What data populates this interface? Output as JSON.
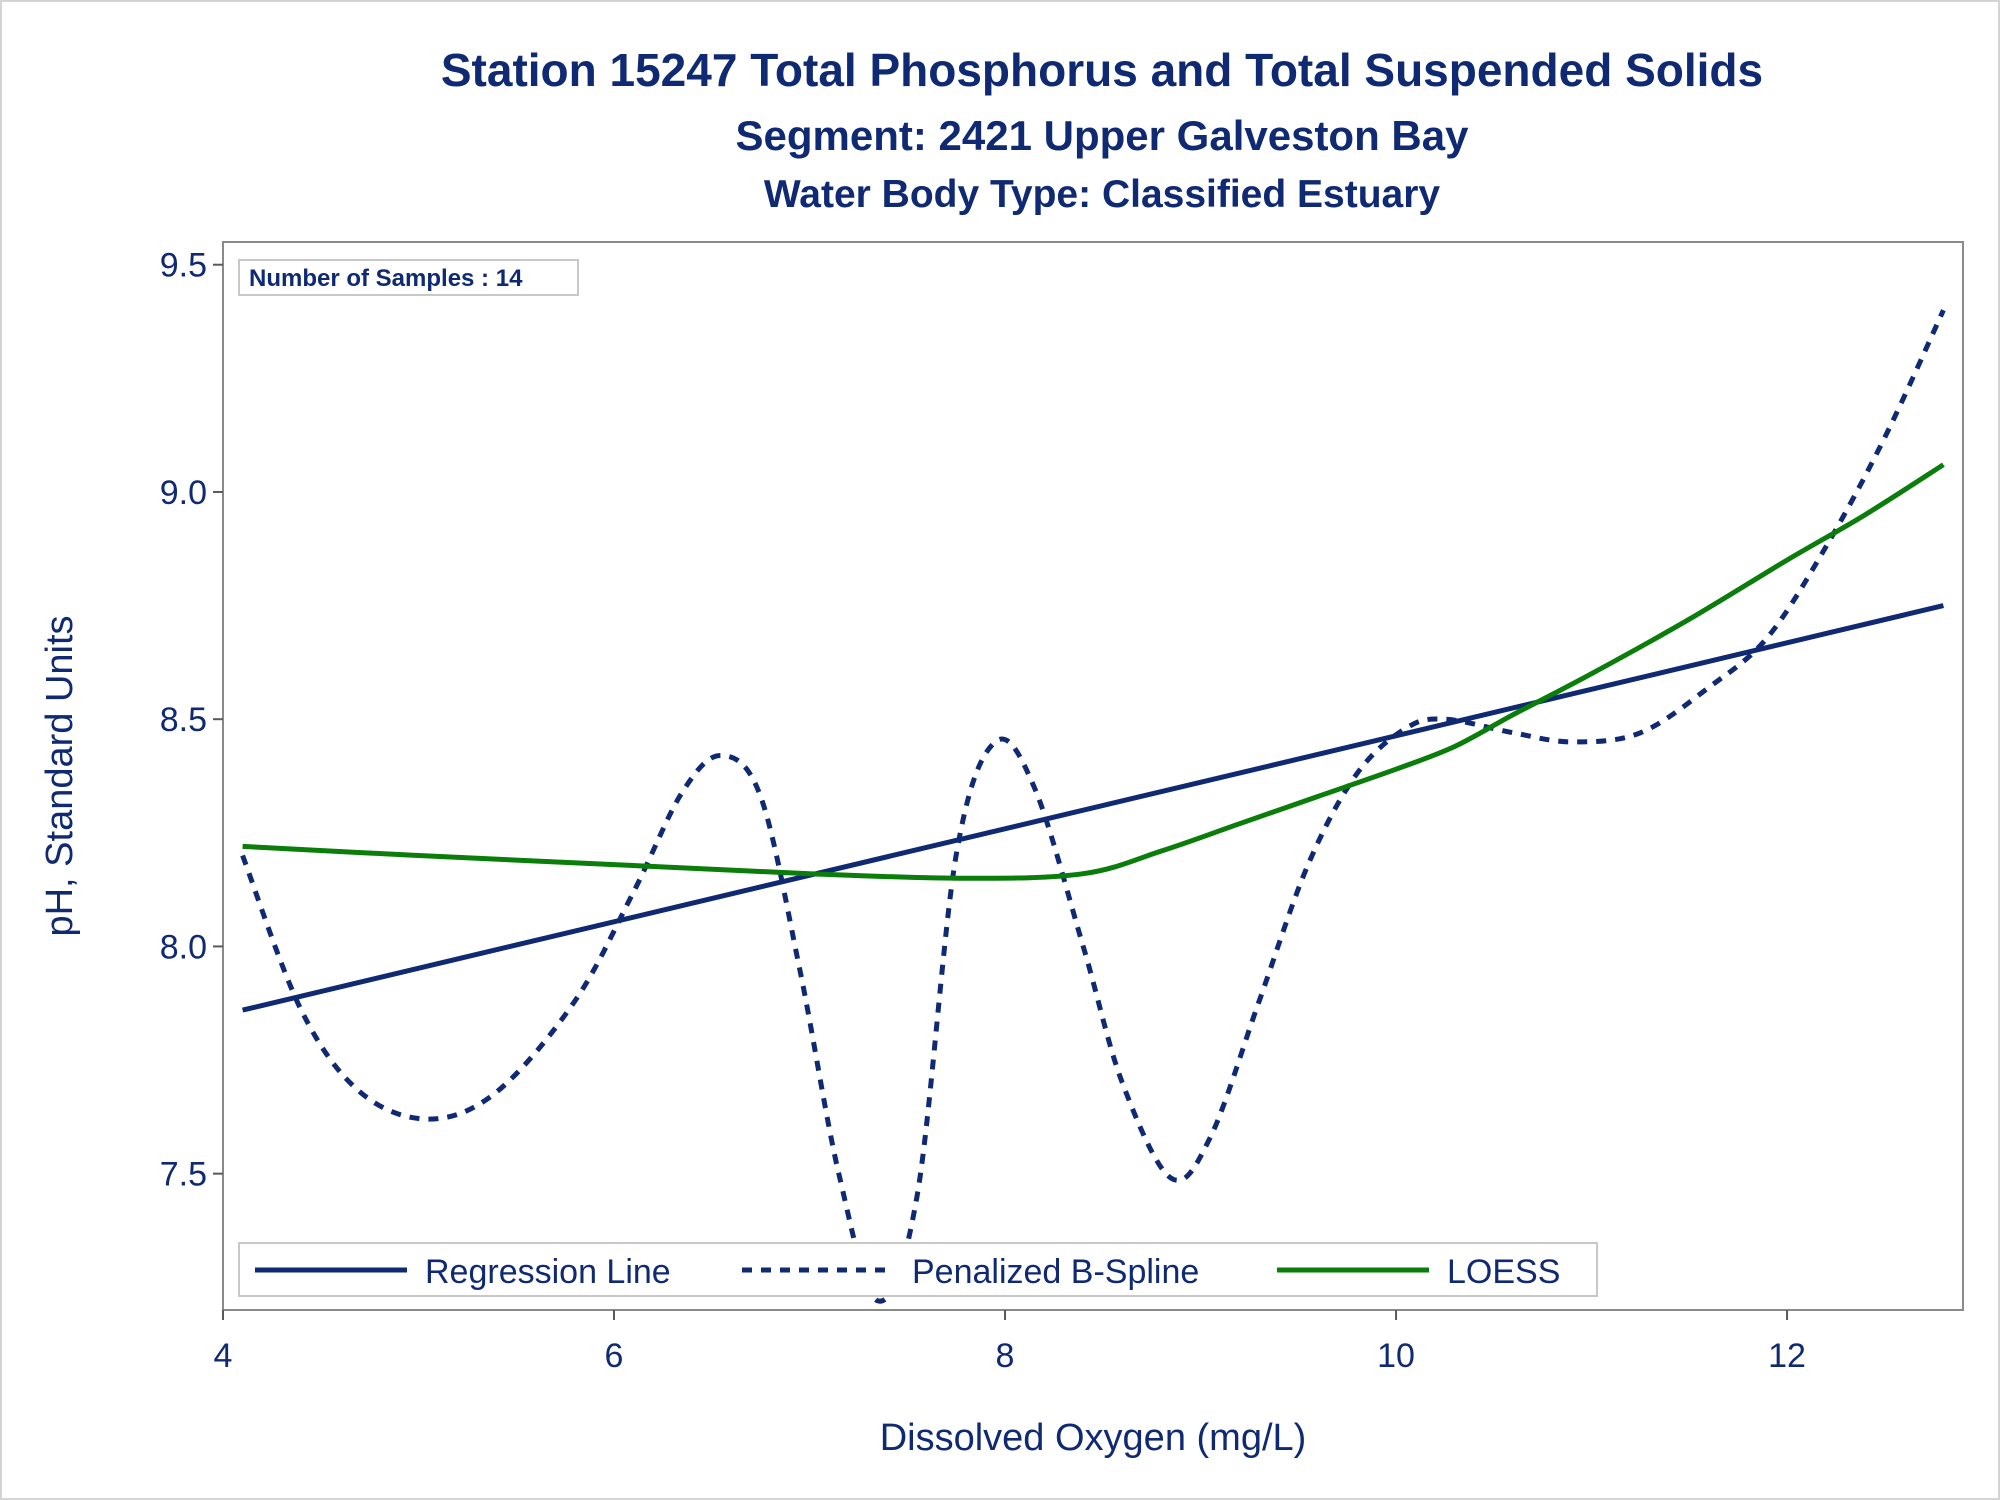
{
  "chart_data": {
    "type": "line",
    "title": "Station 15247  Total Phosphorus and Total Suspended Solids",
    "subtitle": "Segment: 2421  Upper Galveston Bay",
    "subtitle2": "Water Body Type: Classified Estuary",
    "xlabel": "Dissolved Oxygen (mg/L)",
    "ylabel": "pH, Standard Units",
    "xlim": [
      4.0,
      12.9
    ],
    "ylim": [
      7.2,
      9.55
    ],
    "xticks": [
      4,
      6,
      8,
      10,
      12
    ],
    "yticks": [
      7.5,
      8.0,
      8.5,
      9.0,
      9.5
    ],
    "ytick_labels": [
      "7.5",
      "8.0",
      "8.5",
      "9.0",
      "9.5"
    ],
    "grid": false,
    "legend_position": "bottom-left inside",
    "inset_text": "Number of Samples : 14",
    "series": [
      {
        "name": "Regression Line",
        "style": "solid",
        "color": "#0f2a73",
        "points": [
          [
            4.1,
            7.86
          ],
          [
            12.8,
            8.75
          ]
        ]
      },
      {
        "name": "Penalized B-Spline",
        "style": "dashed",
        "color": "#0f2a73",
        "points": [
          [
            4.1,
            8.2
          ],
          [
            4.4,
            7.86
          ],
          [
            4.7,
            7.68
          ],
          [
            5.05,
            7.62
          ],
          [
            5.4,
            7.68
          ],
          [
            5.8,
            7.88
          ],
          [
            6.1,
            8.12
          ],
          [
            6.35,
            8.34
          ],
          [
            6.55,
            8.42
          ],
          [
            6.75,
            8.33
          ],
          [
            6.95,
            7.95
          ],
          [
            7.15,
            7.5
          ],
          [
            7.35,
            7.22
          ],
          [
            7.55,
            7.45
          ],
          [
            7.75,
            8.2
          ],
          [
            7.95,
            8.45
          ],
          [
            8.15,
            8.35
          ],
          [
            8.4,
            8.0
          ],
          [
            8.6,
            7.7
          ],
          [
            8.85,
            7.49
          ],
          [
            9.05,
            7.58
          ],
          [
            9.3,
            7.88
          ],
          [
            9.55,
            8.18
          ],
          [
            9.8,
            8.38
          ],
          [
            10.05,
            8.48
          ],
          [
            10.25,
            8.5
          ],
          [
            10.6,
            8.47
          ],
          [
            10.9,
            8.45
          ],
          [
            11.25,
            8.47
          ],
          [
            11.6,
            8.57
          ],
          [
            11.9,
            8.68
          ],
          [
            12.2,
            8.88
          ],
          [
            12.5,
            9.12
          ],
          [
            12.8,
            9.4
          ]
        ]
      },
      {
        "name": "LOESS",
        "style": "solid",
        "color": "#0a7d0a",
        "points": [
          [
            4.1,
            8.22
          ],
          [
            5.0,
            8.2
          ],
          [
            6.0,
            8.18
          ],
          [
            7.0,
            8.16
          ],
          [
            7.8,
            8.15
          ],
          [
            8.4,
            8.16
          ],
          [
            8.8,
            8.21
          ],
          [
            9.2,
            8.27
          ],
          [
            9.6,
            8.33
          ],
          [
            10.0,
            8.39
          ],
          [
            10.3,
            8.44
          ],
          [
            10.6,
            8.51
          ],
          [
            11.0,
            8.6
          ],
          [
            11.5,
            8.72
          ],
          [
            12.0,
            8.85
          ],
          [
            12.4,
            8.95
          ],
          [
            12.8,
            9.06
          ]
        ]
      }
    ]
  }
}
